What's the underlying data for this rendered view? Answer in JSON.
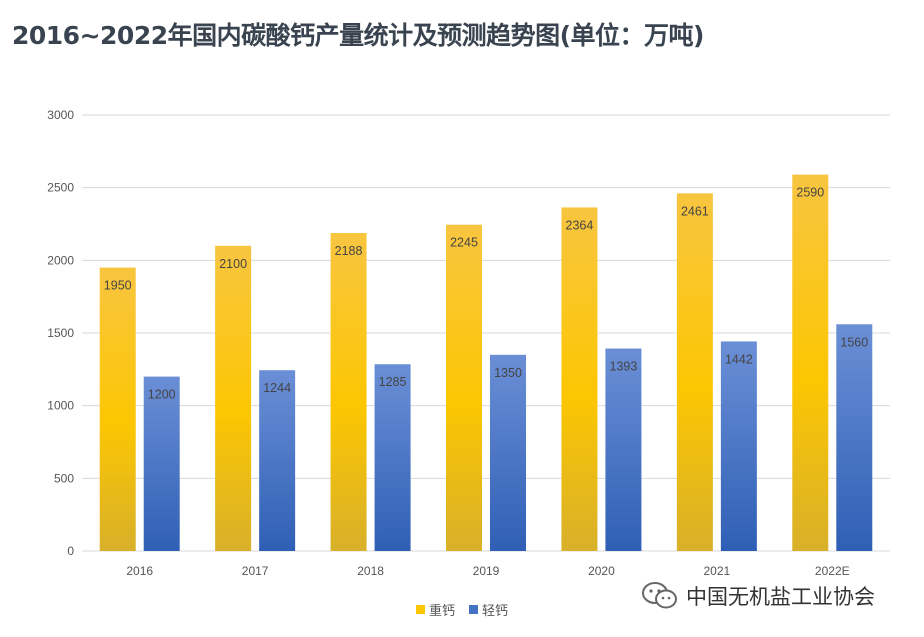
{
  "title": "2016~2022年国内碳酸钙产量统计及预测趋势图(单位：万吨)",
  "watermark": "中国无机盐工业协会",
  "colors": {
    "heavy_top": "#f8c540",
    "heavy_mid": "#fcc602",
    "heavy_bottom": "#d8b02a",
    "light_top": "#6b8fd6",
    "light_bottom": "#2f5fb5",
    "grid": "#d9d9d9"
  },
  "chart_data": {
    "type": "bar",
    "categories": [
      "2016",
      "2017",
      "2018",
      "2019",
      "2020",
      "2021",
      "2022E"
    ],
    "series": [
      {
        "name": "重钙",
        "values": [
          1950,
          2100,
          2188,
          2245,
          2364,
          2461,
          2590
        ],
        "color": "#fcc602"
      },
      {
        "name": "轻钙",
        "values": [
          1200,
          1244,
          1285,
          1350,
          1393,
          1442,
          1560
        ],
        "color": "#4472c4"
      }
    ],
    "yticks": [
      "0",
      "500",
      "1000",
      "1500",
      "2000",
      "2500",
      "3000"
    ],
    "ylim": [
      0,
      3000
    ],
    "grid": true,
    "legend": "bottom-center",
    "data_labels": true
  }
}
